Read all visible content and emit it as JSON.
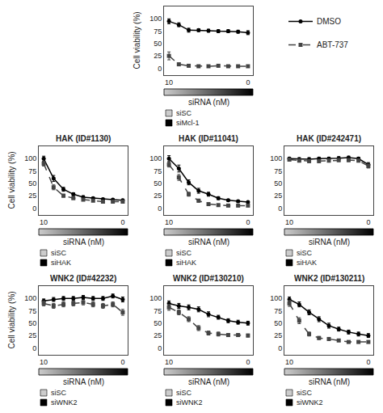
{
  "chart_data": [
    {
      "type": "line",
      "xlabel": "siRNA (nM)",
      "ylabel": "Cell viability (%)",
      "categories": [
        "10",
        null,
        null,
        null,
        null,
        null,
        null,
        null,
        "0"
      ],
      "series": [
        {
          "name": "DMSO",
          "color": "#000000",
          "marker": "circle",
          "line_style": "solid",
          "values": [
            95,
            88,
            77,
            77,
            76,
            75,
            75,
            74,
            72
          ],
          "errors": [
            5,
            4,
            4,
            3,
            3,
            3,
            3,
            3,
            4
          ]
        },
        {
          "name": "ABT-737",
          "color": "#444444",
          "marker": "square",
          "line_style": "dashed",
          "values": [
            25,
            8,
            5,
            4,
            4,
            5,
            4,
            4,
            4
          ],
          "errors": [
            8,
            2,
            1,
            1,
            1,
            1,
            1,
            1,
            1
          ]
        }
      ],
      "ylim": [
        -14,
        125
      ],
      "yticks": [
        0,
        25,
        50,
        75,
        100
      ],
      "grid": false,
      "annotations": [
        {
          "text": "siSC",
          "color": "#cccccc"
        },
        {
          "text": "siMcl-1",
          "color": "#000000"
        }
      ]
    },
    {
      "type": "line",
      "title": "HAK (ID#1130)",
      "xlabel": "siRNA (nM)",
      "ylabel": "Cell viability (%)",
      "categories": [
        "10",
        null,
        null,
        null,
        null,
        null,
        null,
        null,
        "0"
      ],
      "series": [
        {
          "name": "DMSO",
          "color": "#000000",
          "marker": "circle",
          "line_style": "solid",
          "values": [
            100,
            60,
            38,
            28,
            22,
            20,
            18,
            17,
            16
          ],
          "errors": [
            5,
            6,
            4,
            3,
            3,
            2,
            2,
            2,
            2
          ]
        },
        {
          "name": "ABT-737",
          "color": "#444444",
          "marker": "square",
          "line_style": "dashed",
          "values": [
            90,
            42,
            25,
            20,
            17,
            15,
            13,
            13,
            13
          ],
          "errors": [
            5,
            5,
            3,
            2,
            2,
            2,
            2,
            2,
            2
          ]
        }
      ],
      "ylim": [
        -14,
        125
      ],
      "yticks": [
        0,
        25,
        50,
        75,
        100
      ],
      "grid": false,
      "annotations": [
        {
          "text": "siSC",
          "color": "#cccccc"
        },
        {
          "text": "siHAK",
          "color": "#000000"
        }
      ]
    },
    {
      "type": "line",
      "title": "HAK (ID#11041)",
      "xlabel": "siRNA (nM)",
      "categories": [
        "10",
        null,
        null,
        null,
        null,
        null,
        null,
        null,
        "0"
      ],
      "series": [
        {
          "name": "DMSO",
          "color": "#000000",
          "marker": "circle",
          "line_style": "solid",
          "values": [
            100,
            80,
            52,
            35,
            28,
            20,
            16,
            14,
            12
          ],
          "errors": [
            6,
            7,
            5,
            5,
            4,
            3,
            2,
            2,
            2
          ]
        },
        {
          "name": "ABT-737",
          "color": "#444444",
          "marker": "square",
          "line_style": "dashed",
          "values": [
            88,
            62,
            28,
            15,
            8,
            6,
            5,
            5,
            5
          ],
          "errors": [
            5,
            6,
            4,
            3,
            2,
            1,
            1,
            1,
            1
          ]
        }
      ],
      "ylim": [
        -14,
        125
      ],
      "yticks": [
        0,
        25,
        50,
        75,
        100
      ],
      "grid": false,
      "annotations": [
        {
          "text": "siSC",
          "color": "#cccccc"
        },
        {
          "text": "siHAK",
          "color": "#000000"
        }
      ]
    },
    {
      "type": "line",
      "title": "HAK (ID#242471)",
      "xlabel": "siRNA (nM)",
      "categories": [
        "10",
        null,
        null,
        null,
        null,
        null,
        null,
        null,
        "0"
      ],
      "series": [
        {
          "name": "DMSO",
          "color": "#000000",
          "marker": "circle",
          "line_style": "solid",
          "values": [
            100,
            99,
            99,
            100,
            100,
            101,
            102,
            100,
            88
          ],
          "errors": [
            3,
            3,
            3,
            3,
            3,
            3,
            3,
            3,
            4
          ]
        },
        {
          "name": "ABT-737",
          "color": "#444444",
          "marker": "square",
          "line_style": "dashed",
          "values": [
            98,
            96,
            95,
            95,
            96,
            97,
            97,
            96,
            85
          ],
          "errors": [
            3,
            3,
            3,
            3,
            3,
            3,
            3,
            3,
            4
          ]
        }
      ],
      "ylim": [
        -14,
        125
      ],
      "yticks": [
        0,
        25,
        50,
        75,
        100
      ],
      "grid": false,
      "annotations": [
        {
          "text": "siSC",
          "color": "#cccccc"
        },
        {
          "text": "siHAK",
          "color": "#000000"
        }
      ]
    },
    {
      "type": "line",
      "title": "WNK2 (ID#42232)",
      "xlabel": "siRNA (nM)",
      "ylabel": "Cell viability (%)",
      "categories": [
        "10",
        null,
        null,
        null,
        null,
        null,
        null,
        null,
        "0"
      ],
      "series": [
        {
          "name": "DMSO",
          "color": "#000000",
          "marker": "circle",
          "line_style": "solid",
          "values": [
            95,
            98,
            100,
            100,
            102,
            100,
            100,
            105,
            98
          ],
          "errors": [
            4,
            4,
            4,
            4,
            4,
            4,
            4,
            4,
            5
          ]
        },
        {
          "name": "ABT-737",
          "color": "#444444",
          "marker": "square",
          "line_style": "dashed",
          "values": [
            90,
            85,
            88,
            90,
            92,
            88,
            85,
            88,
            72
          ],
          "errors": [
            5,
            5,
            5,
            5,
            5,
            5,
            5,
            5,
            6
          ]
        }
      ],
      "ylim": [
        -14,
        125
      ],
      "yticks": [
        0,
        25,
        50,
        75,
        100
      ],
      "grid": false,
      "annotations": [
        {
          "text": "siSC",
          "color": "#cccccc"
        },
        {
          "text": "siWNK2",
          "color": "#000000"
        }
      ]
    },
    {
      "type": "line",
      "title": "WNK2 (ID#130210)",
      "xlabel": "siRNA (nM)",
      "categories": [
        "10",
        null,
        null,
        null,
        null,
        null,
        null,
        null,
        "0"
      ],
      "series": [
        {
          "name": "DMSO",
          "color": "#000000",
          "marker": "circle",
          "line_style": "solid",
          "values": [
            90,
            85,
            82,
            78,
            68,
            62,
            55,
            52,
            50
          ],
          "errors": [
            5,
            5,
            5,
            5,
            5,
            4,
            4,
            4,
            4
          ]
        },
        {
          "name": "ABT-737",
          "color": "#444444",
          "marker": "square",
          "line_style": "dashed",
          "values": [
            82,
            72,
            58,
            40,
            30,
            28,
            26,
            26,
            25
          ],
          "errors": [
            6,
            5,
            5,
            5,
            4,
            4,
            3,
            3,
            3
          ]
        }
      ],
      "ylim": [
        -14,
        125
      ],
      "yticks": [
        0,
        25,
        50,
        75,
        100
      ],
      "grid": false,
      "annotations": [
        {
          "text": "siSC",
          "color": "#cccccc"
        },
        {
          "text": "siWNK2",
          "color": "#000000"
        }
      ]
    },
    {
      "type": "line",
      "title": "WNK2 (ID#130211)",
      "xlabel": "siRNA (nM)",
      "categories": [
        "10",
        null,
        null,
        null,
        null,
        null,
        null,
        null,
        "0"
      ],
      "series": [
        {
          "name": "DMSO",
          "color": "#000000",
          "marker": "circle",
          "line_style": "solid",
          "values": [
            98,
            88,
            72,
            58,
            45,
            38,
            32,
            28,
            25
          ],
          "errors": [
            5,
            5,
            5,
            5,
            5,
            4,
            4,
            4,
            4
          ]
        },
        {
          "name": "ABT-737",
          "color": "#444444",
          "marker": "square",
          "line_style": "dashed",
          "values": [
            90,
            55,
            28,
            20,
            18,
            15,
            12,
            12,
            12
          ],
          "errors": [
            6,
            6,
            4,
            3,
            3,
            2,
            2,
            2,
            2
          ]
        }
      ],
      "ylim": [
        -14,
        125
      ],
      "yticks": [
        0,
        25,
        50,
        75,
        100
      ],
      "grid": false,
      "annotations": [
        {
          "text": "siSC",
          "color": "#cccccc"
        },
        {
          "text": "siWNK2",
          "color": "#000000"
        }
      ]
    }
  ]
}
